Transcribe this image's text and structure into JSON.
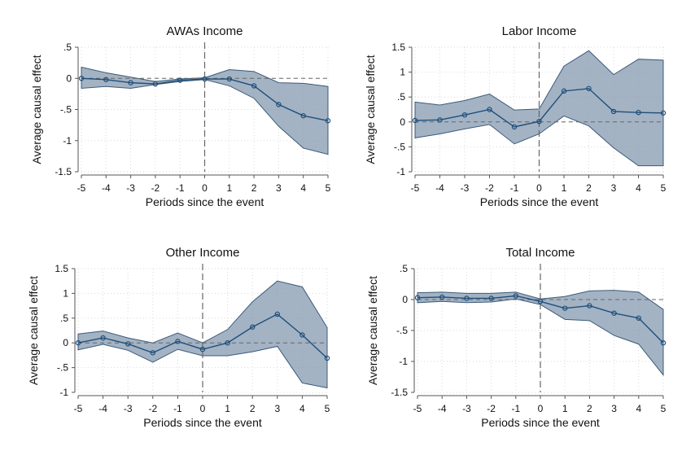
{
  "figure": {
    "colors": {
      "band": "#7f96ad",
      "band_edge": "#3c5a78",
      "line": "#1f4e79",
      "grid": "#d9d9d9",
      "ref": "#666666",
      "axis": "#555555"
    }
  },
  "chart_data": [
    {
      "type": "line",
      "title": "AWAs Income",
      "xlabel": "Periods since the event",
      "ylabel": "Average causal effect",
      "xlim": [
        -5,
        5
      ],
      "ylim": [
        -1.5,
        0.5
      ],
      "x_ticks": [
        -5,
        -4,
        -3,
        -2,
        -1,
        0,
        1,
        2,
        3,
        4,
        5
      ],
      "x_tick_labels": [
        "-5",
        "-4",
        "-3",
        "-2",
        "-1",
        "0",
        "1",
        "2",
        "3",
        "4",
        "5"
      ],
      "y_ticks": [
        -1.5,
        -1,
        -0.5,
        0,
        0.5
      ],
      "y_tick_labels": [
        "-1.5",
        "-1",
        "-.5",
        "0",
        ".5"
      ],
      "grid": true,
      "x": [
        -5,
        -4,
        -3,
        -2,
        -1,
        0,
        1,
        2,
        3,
        4,
        5
      ],
      "y": [
        0.0,
        -0.02,
        -0.07,
        -0.09,
        -0.03,
        -0.01,
        -0.01,
        -0.12,
        -0.42,
        -0.6,
        -0.68
      ],
      "ci_upper": [
        0.18,
        0.09,
        0.02,
        -0.05,
        -0.01,
        0.01,
        0.14,
        0.11,
        -0.07,
        -0.08,
        -0.13
      ],
      "ci_lower": [
        -0.16,
        -0.13,
        -0.16,
        -0.1,
        -0.05,
        -0.02,
        -0.12,
        -0.32,
        -0.77,
        -1.12,
        -1.22
      ]
    },
    {
      "type": "line",
      "title": "Labor Income",
      "xlabel": "Periods since the event",
      "ylabel": "Average causal effect",
      "xlim": [
        -5,
        5
      ],
      "ylim": [
        -1,
        1.5
      ],
      "x_ticks": [
        -5,
        -4,
        -3,
        -2,
        -1,
        0,
        1,
        2,
        3,
        4,
        5
      ],
      "x_tick_labels": [
        "-5",
        "-4",
        "-3",
        "-2",
        "-1",
        "0",
        "1",
        "2",
        "3",
        "4",
        "5"
      ],
      "y_ticks": [
        -1,
        -0.5,
        0,
        0.5,
        1,
        1.5
      ],
      "y_tick_labels": [
        "-1",
        "-.5",
        "0",
        ".5",
        "1",
        "1.5"
      ],
      "grid": true,
      "x": [
        -5,
        -4,
        -3,
        -2,
        -1,
        0,
        1,
        2,
        3,
        4,
        5
      ],
      "y": [
        0.03,
        0.04,
        0.14,
        0.25,
        -0.1,
        0.01,
        0.62,
        0.67,
        0.21,
        0.19,
        0.18
      ],
      "ci_upper": [
        0.4,
        0.34,
        0.43,
        0.56,
        0.24,
        0.26,
        1.12,
        1.43,
        0.95,
        1.26,
        1.24
      ],
      "ci_lower": [
        -0.32,
        -0.24,
        -0.14,
        -0.05,
        -0.44,
        -0.24,
        0.12,
        -0.08,
        -0.52,
        -0.88,
        -0.88
      ]
    },
    {
      "type": "line",
      "title": "Other Income",
      "xlabel": "Periods since the event",
      "ylabel": "Average causal effect",
      "xlim": [
        -5,
        5
      ],
      "ylim": [
        -1,
        1.5
      ],
      "x_ticks": [
        -5,
        -4,
        -3,
        -2,
        -1,
        0,
        1,
        2,
        3,
        4,
        5
      ],
      "x_tick_labels": [
        "-5",
        "-4",
        "-3",
        "-2",
        "-1",
        "0",
        "1",
        "2",
        "3",
        "4",
        "5"
      ],
      "y_ticks": [
        -1,
        -0.5,
        0,
        0.5,
        1,
        1.5
      ],
      "y_tick_labels": [
        "-1",
        "-.5",
        "0",
        ".5",
        "1",
        "1.5"
      ],
      "grid": true,
      "x": [
        -5,
        -4,
        -3,
        -2,
        -1,
        0,
        1,
        2,
        3,
        4,
        5
      ],
      "y": [
        0.0,
        0.1,
        -0.02,
        -0.2,
        0.03,
        -0.13,
        0.0,
        0.32,
        0.58,
        0.16,
        -0.31
      ],
      "ci_upper": [
        0.18,
        0.24,
        0.1,
        0.0,
        0.2,
        0.0,
        0.27,
        0.83,
        1.25,
        1.13,
        0.31
      ],
      "ci_lower": [
        -0.14,
        -0.03,
        -0.15,
        -0.39,
        -0.13,
        -0.26,
        -0.26,
        -0.18,
        -0.07,
        -0.81,
        -0.91
      ]
    },
    {
      "type": "line",
      "title": "Total Income",
      "xlabel": "Periods since the event",
      "ylabel": "Average causal effect",
      "xlim": [
        -5,
        5
      ],
      "ylim": [
        -1.5,
        0.5
      ],
      "x_ticks": [
        -5,
        -4,
        -3,
        -2,
        -1,
        0,
        1,
        2,
        3,
        4,
        5
      ],
      "x_tick_labels": [
        "-5",
        "-4",
        "-3",
        "-2",
        "-1",
        "0",
        "1",
        "2",
        "3",
        "4",
        "5"
      ],
      "y_ticks": [
        -1.5,
        -1,
        -0.5,
        0,
        0.5
      ],
      "y_tick_labels": [
        "-1.5",
        "-1",
        "-.5",
        "0",
        ".5"
      ],
      "grid": true,
      "x": [
        -5,
        -4,
        -3,
        -2,
        -1,
        0,
        1,
        2,
        3,
        4,
        5
      ],
      "y": [
        0.03,
        0.04,
        0.02,
        0.02,
        0.06,
        -0.03,
        -0.14,
        -0.1,
        -0.22,
        -0.3,
        -0.7
      ],
      "ci_upper": [
        0.11,
        0.12,
        0.1,
        0.1,
        0.12,
        0.01,
        0.05,
        0.14,
        0.15,
        0.12,
        -0.16
      ],
      "ci_lower": [
        -0.05,
        -0.03,
        -0.05,
        -0.04,
        0.01,
        -0.08,
        -0.32,
        -0.34,
        -0.58,
        -0.72,
        -1.22
      ]
    }
  ]
}
